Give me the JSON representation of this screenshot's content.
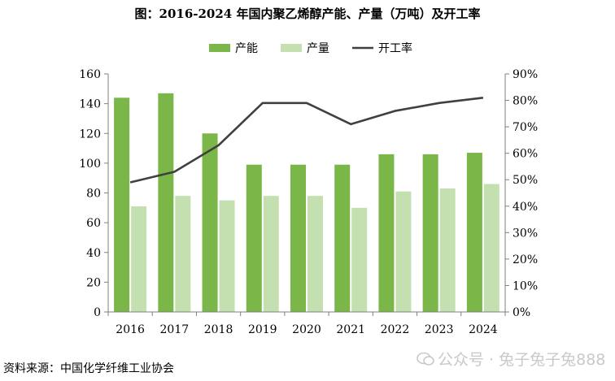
{
  "chart_data": {
    "type": "bar+line",
    "title": "图：2016-2024 年国内聚乙烯醇产能、产量（万吨）及开工率",
    "categories": [
      "2016",
      "2017",
      "2018",
      "2019",
      "2020",
      "2021",
      "2022",
      "2023",
      "2024"
    ],
    "series": [
      {
        "name": "产能",
        "type": "bar",
        "axis": "left",
        "color": "#7ab648",
        "values": [
          144,
          147,
          120,
          99,
          99,
          99,
          106,
          106,
          107
        ]
      },
      {
        "name": "产量",
        "type": "bar",
        "axis": "left",
        "color": "#c5e0b0",
        "values": [
          71,
          78,
          75,
          78,
          78,
          70,
          81,
          83,
          86
        ]
      },
      {
        "name": "开工率",
        "type": "line",
        "axis": "right",
        "color": "#404040",
        "values": [
          49,
          53,
          63,
          79,
          79,
          71,
          76,
          79,
          81
        ]
      }
    ],
    "left_axis": {
      "min": 0,
      "max": 160,
      "ticks": [
        "0",
        "20",
        "40",
        "60",
        "80",
        "100",
        "120",
        "140",
        "160"
      ]
    },
    "right_axis": {
      "min": 0,
      "max": 90,
      "ticks": [
        "0%",
        "10%",
        "20%",
        "30%",
        "40%",
        "50%",
        "60%",
        "70%",
        "80%",
        "90%"
      ]
    },
    "legend_position": "top-center",
    "grid": false
  },
  "footer": {
    "source": "资料来源：中国化学纤维工业协会",
    "watermark": "公众号 · 兔子兔子兔888"
  }
}
